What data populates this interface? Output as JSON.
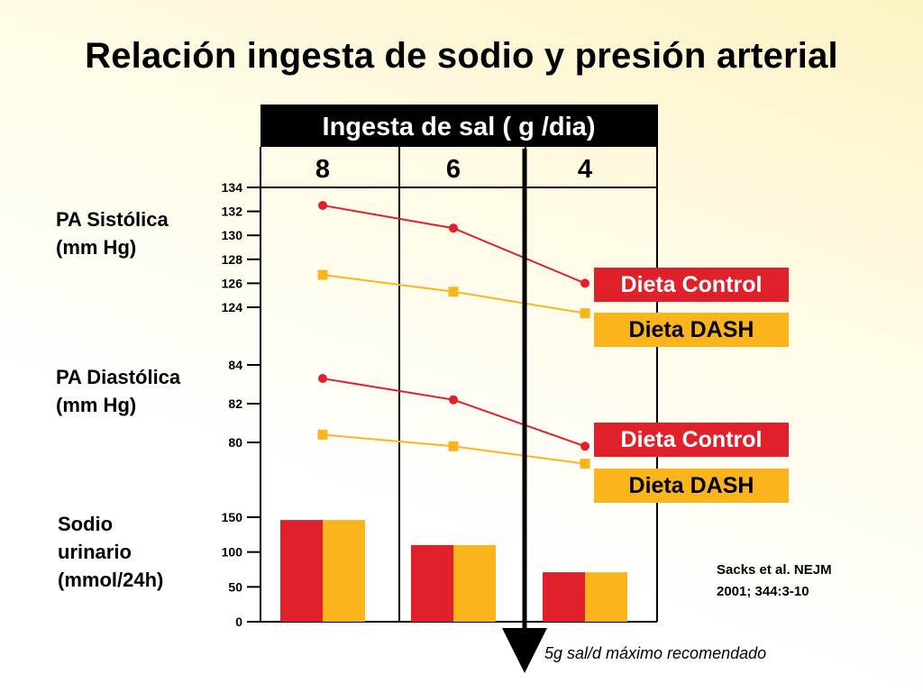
{
  "title": "Relación ingesta de sodio y presión arterial",
  "header": {
    "label": "Ingesta de sal ( g /dia)",
    "categories": [
      "8",
      "6",
      "4"
    ]
  },
  "labels": {
    "sistolica": [
      "PA Sistólica",
      "(mm Hg)"
    ],
    "diastolica": [
      "PA Diastólica",
      "(mm Hg)"
    ],
    "sodio": [
      "Sodio",
      "urinario",
      "(mmol/24h)"
    ]
  },
  "legend": {
    "control": "Dieta Control",
    "dash": "Dieta DASH"
  },
  "reference": [
    "Sacks et al. NEJM",
    "2001; 344:3-10"
  ],
  "note": "5g sal/d máximo recomendado",
  "colors": {
    "control": "#e0202a",
    "dash": "#fbb41c",
    "header": "#000000"
  },
  "chart_data": [
    {
      "type": "line",
      "name": "PA Sistólica",
      "x": [
        "8",
        "6",
        "4"
      ],
      "ylim": [
        124,
        134
      ],
      "yticks": [
        "134",
        "132",
        "130",
        "128",
        "126",
        "124"
      ],
      "series": [
        {
          "name": "Dieta Control",
          "values": [
            132.5,
            130.6,
            126.0
          ]
        },
        {
          "name": "Dieta DASH",
          "values": [
            126.7,
            125.3,
            123.5
          ]
        }
      ]
    },
    {
      "type": "line",
      "name": "PA Diastólica",
      "x": [
        "8",
        "6",
        "4"
      ],
      "ylim": [
        80,
        84
      ],
      "yticks": [
        "84",
        "82",
        "80"
      ],
      "series": [
        {
          "name": "Dieta Control",
          "values": [
            83.3,
            82.2,
            79.8
          ]
        },
        {
          "name": "Dieta DASH",
          "values": [
            80.4,
            79.8,
            78.9
          ]
        }
      ]
    },
    {
      "type": "bar",
      "name": "Sodio urinario",
      "categories": [
        "8",
        "6",
        "4"
      ],
      "ylim": [
        0,
        150
      ],
      "yticks": [
        "150",
        "100",
        "50",
        "0"
      ],
      "series": [
        {
          "name": "Dieta Control",
          "values": [
            146,
            110,
            71
          ]
        },
        {
          "name": "Dieta DASH",
          "values": [
            146,
            110,
            71
          ]
        }
      ]
    }
  ]
}
